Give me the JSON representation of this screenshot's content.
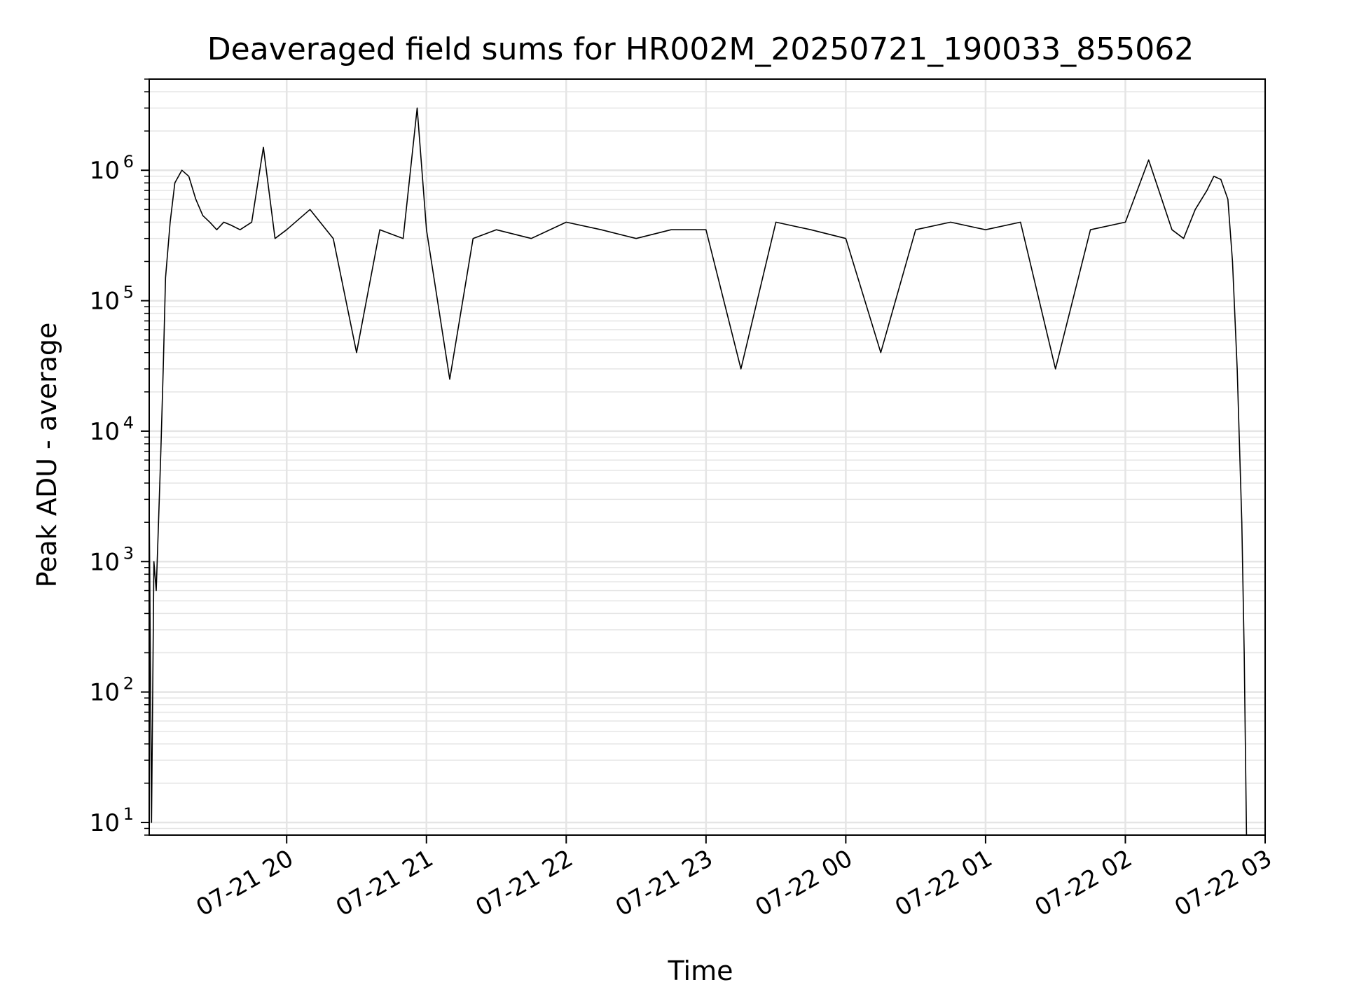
{
  "chart_data": {
    "type": "line",
    "title": "Deaveraged field sums for HR002M_20250721_190033_855062",
    "xlabel": "Time",
    "ylabel": "Peak ADU - average",
    "yscale": "log",
    "xlim": [
      "2025-07-21 19:01",
      "2025-07-22 03:00"
    ],
    "ylim": [
      8,
      5000000
    ],
    "grid": true,
    "line_color": "#000000",
    "grid_color": "#e5e5e5",
    "x_ticks": [
      "2025-07-21 20:00",
      "2025-07-21 21:00",
      "2025-07-21 22:00",
      "2025-07-21 23:00",
      "2025-07-22 00:00",
      "2025-07-22 01:00",
      "2025-07-22 02:00",
      "2025-07-22 03:00"
    ],
    "x_tick_labels": [
      "07-21 20",
      "07-21 21",
      "07-21 22",
      "07-21 23",
      "07-22 00",
      "07-22 01",
      "07-22 02",
      "07-22 03"
    ],
    "y_ticks": [
      10,
      100,
      1000,
      10000,
      100000,
      1000000
    ],
    "y_tick_labels": [
      {
        "base": "10",
        "exp": "1"
      },
      {
        "base": "10",
        "exp": "2"
      },
      {
        "base": "10",
        "exp": "3"
      },
      {
        "base": "10",
        "exp": "4"
      },
      {
        "base": "10",
        "exp": "5"
      },
      {
        "base": "10",
        "exp": "6"
      }
    ],
    "series": [
      {
        "x": [
          "2025-07-21 19:01",
          "2025-07-21 19:02",
          "2025-07-21 19:03",
          "2025-07-21 19:04",
          "2025-07-21 19:05",
          "2025-07-21 19:06",
          "2025-07-21 19:07",
          "2025-07-21 19:08",
          "2025-07-21 19:10",
          "2025-07-21 19:12",
          "2025-07-21 19:15",
          "2025-07-21 19:18",
          "2025-07-21 19:21",
          "2025-07-21 19:24",
          "2025-07-21 19:27",
          "2025-07-21 19:30",
          "2025-07-21 19:33",
          "2025-07-21 19:36",
          "2025-07-21 19:40",
          "2025-07-21 19:45",
          "2025-07-21 19:50",
          "2025-07-21 19:55",
          "2025-07-21 20:00",
          "2025-07-21 20:10",
          "2025-07-21 20:20",
          "2025-07-21 20:30",
          "2025-07-21 20:40",
          "2025-07-21 20:50",
          "2025-07-21 20:56",
          "2025-07-21 21:00",
          "2025-07-21 21:10",
          "2025-07-21 21:20",
          "2025-07-21 21:30",
          "2025-07-21 21:45",
          "2025-07-21 22:00",
          "2025-07-21 22:15",
          "2025-07-21 22:30",
          "2025-07-21 22:45",
          "2025-07-21 23:00",
          "2025-07-21 23:15",
          "2025-07-21 23:30",
          "2025-07-21 23:45",
          "2025-07-22 00:00",
          "2025-07-22 00:15",
          "2025-07-22 00:30",
          "2025-07-22 00:45",
          "2025-07-22 01:00",
          "2025-07-22 01:15",
          "2025-07-22 01:30",
          "2025-07-22 01:45",
          "2025-07-22 02:00",
          "2025-07-22 02:10",
          "2025-07-22 02:20",
          "2025-07-22 02:25",
          "2025-07-22 02:30",
          "2025-07-22 02:35",
          "2025-07-22 02:38",
          "2025-07-22 02:41",
          "2025-07-22 02:44",
          "2025-07-22 02:46",
          "2025-07-22 02:48",
          "2025-07-22 02:50",
          "2025-07-22 02:51",
          "2025-07-22 02:52"
        ],
        "y": [
          2800,
          10,
          1000,
          600,
          2000,
          7000,
          30000,
          150000,
          400000,
          800000,
          1000000,
          900000,
          600000,
          450000,
          400000,
          350000,
          400000,
          380000,
          350000,
          400000,
          1500000,
          300000,
          350000,
          500000,
          300000,
          40000,
          350000,
          300000,
          3000000,
          350000,
          25000,
          300000,
          350000,
          300000,
          400000,
          350000,
          300000,
          350000,
          350000,
          30000,
          400000,
          350000,
          300000,
          40000,
          350000,
          400000,
          350000,
          400000,
          30000,
          350000,
          400000,
          1200000,
          350000,
          300000,
          500000,
          700000,
          900000,
          850000,
          600000,
          200000,
          30000,
          2000,
          200,
          8
        ]
      }
    ]
  }
}
